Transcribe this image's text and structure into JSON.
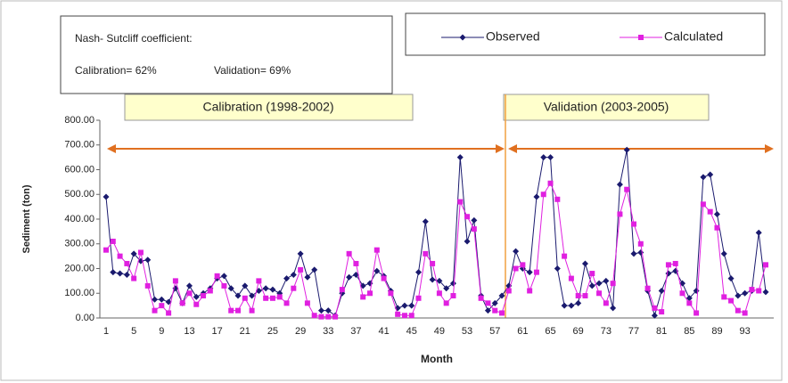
{
  "chart_data": {
    "type": "line",
    "y_label": "Sediment (ton)",
    "x_label": "Month",
    "annotations": [
      "Nash- Sutcliff coefficient:",
      "Calibration= 62%",
      "Validation= 69%",
      "Calibration (1998-2002)",
      "Validation (2003-2005)"
    ],
    "categories": [
      1,
      null,
      null,
      null,
      5,
      null,
      null,
      null,
      9,
      null,
      null,
      null,
      13,
      null,
      null,
      null,
      17,
      null,
      null,
      null,
      21,
      null,
      null,
      null,
      25,
      null,
      null,
      null,
      29,
      null,
      null,
      null,
      33,
      null,
      null,
      null,
      37,
      null,
      null,
      null,
      41,
      null,
      null,
      null,
      45,
      null,
      null,
      null,
      49,
      null,
      null,
      null,
      53,
      null,
      null,
      null,
      57,
      null,
      null,
      null,
      61,
      null,
      null,
      null,
      65,
      null,
      null,
      null,
      69,
      null,
      null,
      null,
      73,
      null,
      null,
      null,
      77,
      null,
      null,
      null,
      81,
      null,
      null,
      null,
      85,
      null,
      null,
      null,
      89,
      null,
      null,
      null,
      93,
      null,
      null,
      null
    ],
    "series": [
      {
        "name": "Observed",
        "color": "#1a1a6e",
        "marker": "diamond",
        "values": [
          490,
          185,
          180,
          175,
          260,
          230,
          235,
          75,
          75,
          65,
          120,
          60,
          130,
          85,
          100,
          120,
          160,
          170,
          120,
          90,
          130,
          90,
          110,
          120,
          115,
          100,
          160,
          175,
          260,
          165,
          195,
          30,
          30,
          10,
          100,
          165,
          175,
          130,
          140,
          190,
          170,
          110,
          40,
          50,
          50,
          185,
          390,
          155,
          150,
          120,
          140,
          650,
          310,
          395,
          90,
          30,
          60,
          90,
          130,
          270,
          200,
          185,
          490,
          650,
          650,
          200,
          50,
          50,
          60,
          220,
          130,
          140,
          150,
          40,
          540,
          680,
          260,
          265,
          110,
          10,
          110,
          180,
          190,
          140,
          80,
          110,
          570,
          580,
          420,
          260,
          160,
          90,
          100,
          110,
          345,
          105
        ]
      },
      {
        "name": "Calculated",
        "color": "#e020e0",
        "marker": "square",
        "values": [
          275,
          310,
          250,
          220,
          160,
          265,
          130,
          30,
          50,
          20,
          150,
          60,
          100,
          55,
          90,
          110,
          170,
          130,
          30,
          30,
          80,
          30,
          150,
          80,
          80,
          85,
          60,
          120,
          195,
          60,
          10,
          5,
          5,
          5,
          115,
          260,
          220,
          85,
          100,
          275,
          160,
          100,
          15,
          10,
          10,
          80,
          260,
          220,
          100,
          60,
          90,
          470,
          410,
          360,
          80,
          60,
          30,
          20,
          110,
          200,
          215,
          110,
          185,
          500,
          545,
          480,
          250,
          160,
          90,
          90,
          180,
          100,
          60,
          140,
          420,
          520,
          380,
          300,
          120,
          40,
          25,
          215,
          220,
          100,
          60,
          20,
          460,
          430,
          365,
          85,
          70,
          30,
          20,
          115,
          110,
          215
        ]
      }
    ],
    "ylim": [
      0,
      800
    ],
    "yticks": [
      {
        "value": 0,
        "label": "0.00"
      },
      {
        "value": 100,
        "label": "100.00"
      },
      {
        "value": 200,
        "label": "200.00"
      },
      {
        "value": 300,
        "label": "300.00"
      },
      {
        "value": 400,
        "label": "400.00"
      },
      {
        "value": 500,
        "label": "500.00"
      },
      {
        "value": 600,
        "label": "600.00"
      },
      {
        "value": 700,
        "label": "700.00"
      },
      {
        "value": 800,
        "label": "800.00"
      }
    ],
    "grid": false
  }
}
